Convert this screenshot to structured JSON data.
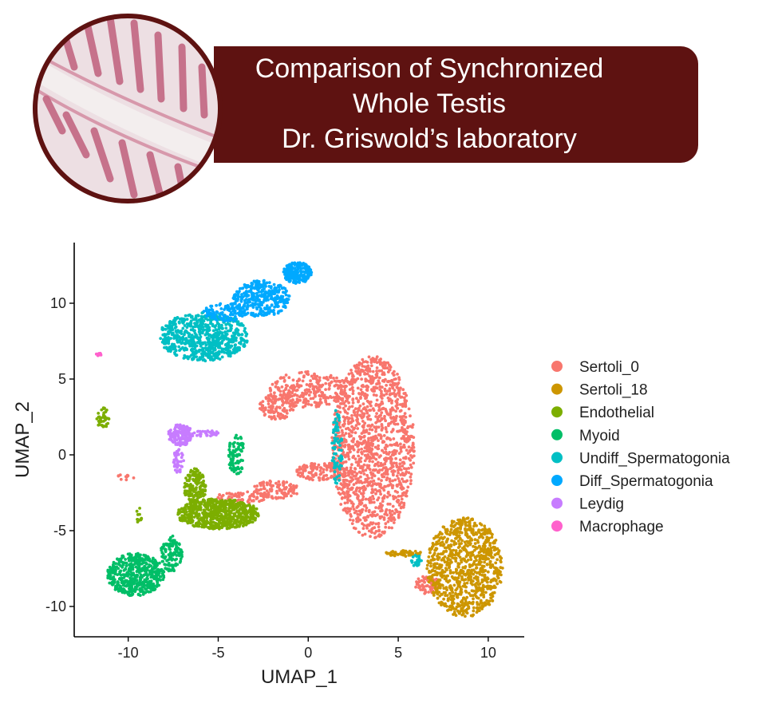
{
  "header": {
    "title_lines": [
      "Comparison of Synchronized",
      "Whole Testis",
      "Dr. Griswold’s laboratory"
    ]
  },
  "chart_data": {
    "type": "scatter",
    "xlabel": "UMAP_1",
    "ylabel": "UMAP_2",
    "xlim": [
      -13,
      12
    ],
    "ylim": [
      -12,
      14
    ],
    "xticks": [
      -10,
      -5,
      0,
      5,
      10
    ],
    "yticks": [
      -10,
      -5,
      0,
      5,
      10
    ],
    "grid": false,
    "legend_position": "right",
    "clusters": [
      {
        "name": "Sertoli_0",
        "color": "#f8766d",
        "regions": [
          {
            "cx": 3.6,
            "cy": 0.5,
            "rx": 2.3,
            "ry": 6.0,
            "n": 1400
          },
          {
            "cx": 0.0,
            "cy": 4.3,
            "rx": 2.2,
            "ry": 1.2,
            "n": 260
          },
          {
            "cx": -1.7,
            "cy": 3.2,
            "rx": 1.0,
            "ry": 0.9,
            "n": 120
          },
          {
            "cx": 0.8,
            "cy": -1.1,
            "rx": 1.5,
            "ry": 0.6,
            "n": 130
          },
          {
            "cx": -1.8,
            "cy": -2.3,
            "rx": 1.3,
            "ry": 0.6,
            "n": 110
          },
          {
            "cx": -3.7,
            "cy": -2.8,
            "rx": 1.4,
            "ry": 0.4,
            "n": 70
          },
          {
            "cx": 6.6,
            "cy": -8.6,
            "rx": 0.7,
            "ry": 0.6,
            "n": 60
          },
          {
            "cx": -10.2,
            "cy": -1.5,
            "rx": 0.6,
            "ry": 0.2,
            "n": 10
          }
        ]
      },
      {
        "name": "Sertoli_18",
        "color": "#cd9600",
        "regions": [
          {
            "cx": 8.7,
            "cy": -7.4,
            "rx": 2.1,
            "ry": 3.3,
            "n": 900
          },
          {
            "cx": 5.3,
            "cy": -6.5,
            "rx": 1.0,
            "ry": 0.2,
            "n": 50
          }
        ]
      },
      {
        "name": "Endothelial",
        "color": "#7cae00",
        "regions": [
          {
            "cx": -5.0,
            "cy": -3.9,
            "rx": 2.3,
            "ry": 1.0,
            "n": 650
          },
          {
            "cx": -6.3,
            "cy": -2.2,
            "rx": 0.6,
            "ry": 1.3,
            "n": 180
          },
          {
            "cx": -11.4,
            "cy": 2.4,
            "rx": 0.35,
            "ry": 0.7,
            "n": 40
          },
          {
            "cx": -9.4,
            "cy": -4.0,
            "rx": 0.15,
            "ry": 0.5,
            "n": 15
          }
        ]
      },
      {
        "name": "Myoid",
        "color": "#00be67",
        "regions": [
          {
            "cx": -9.6,
            "cy": -7.9,
            "rx": 1.6,
            "ry": 1.4,
            "n": 500
          },
          {
            "cx": -7.6,
            "cy": -6.5,
            "rx": 0.6,
            "ry": 1.2,
            "n": 120
          },
          {
            "cx": -4.0,
            "cy": 0.0,
            "rx": 0.45,
            "ry": 1.4,
            "n": 90
          }
        ]
      },
      {
        "name": "Undiff_Spermatogonia",
        "color": "#00bfc4",
        "regions": [
          {
            "cx": -5.8,
            "cy": 7.8,
            "rx": 2.5,
            "ry": 1.6,
            "n": 700
          },
          {
            "cx": 1.6,
            "cy": 0.5,
            "rx": 0.3,
            "ry": 2.5,
            "n": 70
          },
          {
            "cx": 6.0,
            "cy": -7.0,
            "rx": 0.3,
            "ry": 0.4,
            "n": 25
          }
        ]
      },
      {
        "name": "Diff_Spermatogonia",
        "color": "#00a9ff",
        "regions": [
          {
            "cx": -2.6,
            "cy": 10.3,
            "rx": 1.6,
            "ry": 1.2,
            "n": 330
          },
          {
            "cx": -0.6,
            "cy": 12.0,
            "rx": 0.8,
            "ry": 0.7,
            "n": 200
          },
          {
            "cx": -4.6,
            "cy": 9.4,
            "rx": 1.2,
            "ry": 0.6,
            "n": 120
          }
        ]
      },
      {
        "name": "Leydig",
        "color": "#c77cff",
        "regions": [
          {
            "cx": -7.1,
            "cy": 1.3,
            "rx": 0.7,
            "ry": 0.7,
            "n": 160
          },
          {
            "cx": -5.6,
            "cy": 1.4,
            "rx": 0.8,
            "ry": 0.2,
            "n": 40
          },
          {
            "cx": -7.2,
            "cy": -0.4,
            "rx": 0.3,
            "ry": 0.8,
            "n": 40
          }
        ]
      },
      {
        "name": "Macrophage",
        "color": "#ff61cc",
        "regions": [
          {
            "cx": -11.6,
            "cy": 6.6,
            "rx": 0.3,
            "ry": 0.1,
            "n": 10
          }
        ]
      }
    ]
  }
}
